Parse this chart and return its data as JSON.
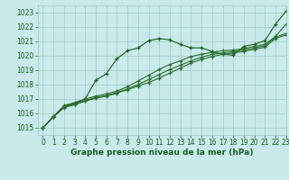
{
  "title": "Graphe pression niveau de la mer (hPa)",
  "background_color": "#c8eaea",
  "grid_color": "#a0c8c8",
  "line_colors": [
    "#1a5c1a",
    "#2d6e2d",
    "#2d6e2d",
    "#2d6e2d"
  ],
  "xlim": [
    -0.5,
    23
  ],
  "ylim": [
    1014.5,
    1023.5
  ],
  "yticks": [
    1015,
    1016,
    1017,
    1018,
    1019,
    1020,
    1021,
    1022,
    1023
  ],
  "xticks": [
    0,
    1,
    2,
    3,
    4,
    5,
    6,
    7,
    8,
    9,
    10,
    11,
    12,
    13,
    14,
    15,
    16,
    17,
    18,
    19,
    20,
    21,
    22,
    23
  ],
  "series": [
    [
      1015.0,
      1015.8,
      1016.5,
      1016.7,
      1017.0,
      1018.3,
      1018.75,
      1019.8,
      1020.35,
      1020.55,
      1021.05,
      1021.2,
      1021.1,
      1020.8,
      1020.55,
      1020.55,
      1020.3,
      1020.1,
      1020.05,
      1020.65,
      1020.8,
      1021.05,
      1022.2,
      1023.1
    ],
    [
      1015.0,
      1015.75,
      1016.55,
      1016.75,
      1017.0,
      1017.2,
      1017.35,
      1017.55,
      1017.85,
      1018.25,
      1018.65,
      1019.05,
      1019.4,
      1019.65,
      1019.95,
      1020.1,
      1020.25,
      1020.35,
      1020.4,
      1020.5,
      1020.65,
      1020.8,
      1021.35,
      1022.2
    ],
    [
      1015.0,
      1015.75,
      1016.45,
      1016.65,
      1016.9,
      1017.1,
      1017.25,
      1017.45,
      1017.7,
      1018.0,
      1018.35,
      1018.7,
      1019.05,
      1019.35,
      1019.65,
      1019.9,
      1020.1,
      1020.2,
      1020.3,
      1020.4,
      1020.55,
      1020.7,
      1021.3,
      1021.55
    ],
    [
      1015.0,
      1015.75,
      1016.4,
      1016.6,
      1016.85,
      1017.05,
      1017.2,
      1017.4,
      1017.65,
      1017.9,
      1018.15,
      1018.45,
      1018.8,
      1019.15,
      1019.5,
      1019.75,
      1019.95,
      1020.1,
      1020.2,
      1020.3,
      1020.45,
      1020.6,
      1021.2,
      1021.45
    ]
  ],
  "marker": "+",
  "markersize": 3,
  "linewidth": 0.8,
  "tick_fontsize": 5.5,
  "label_fontsize": 6.5
}
